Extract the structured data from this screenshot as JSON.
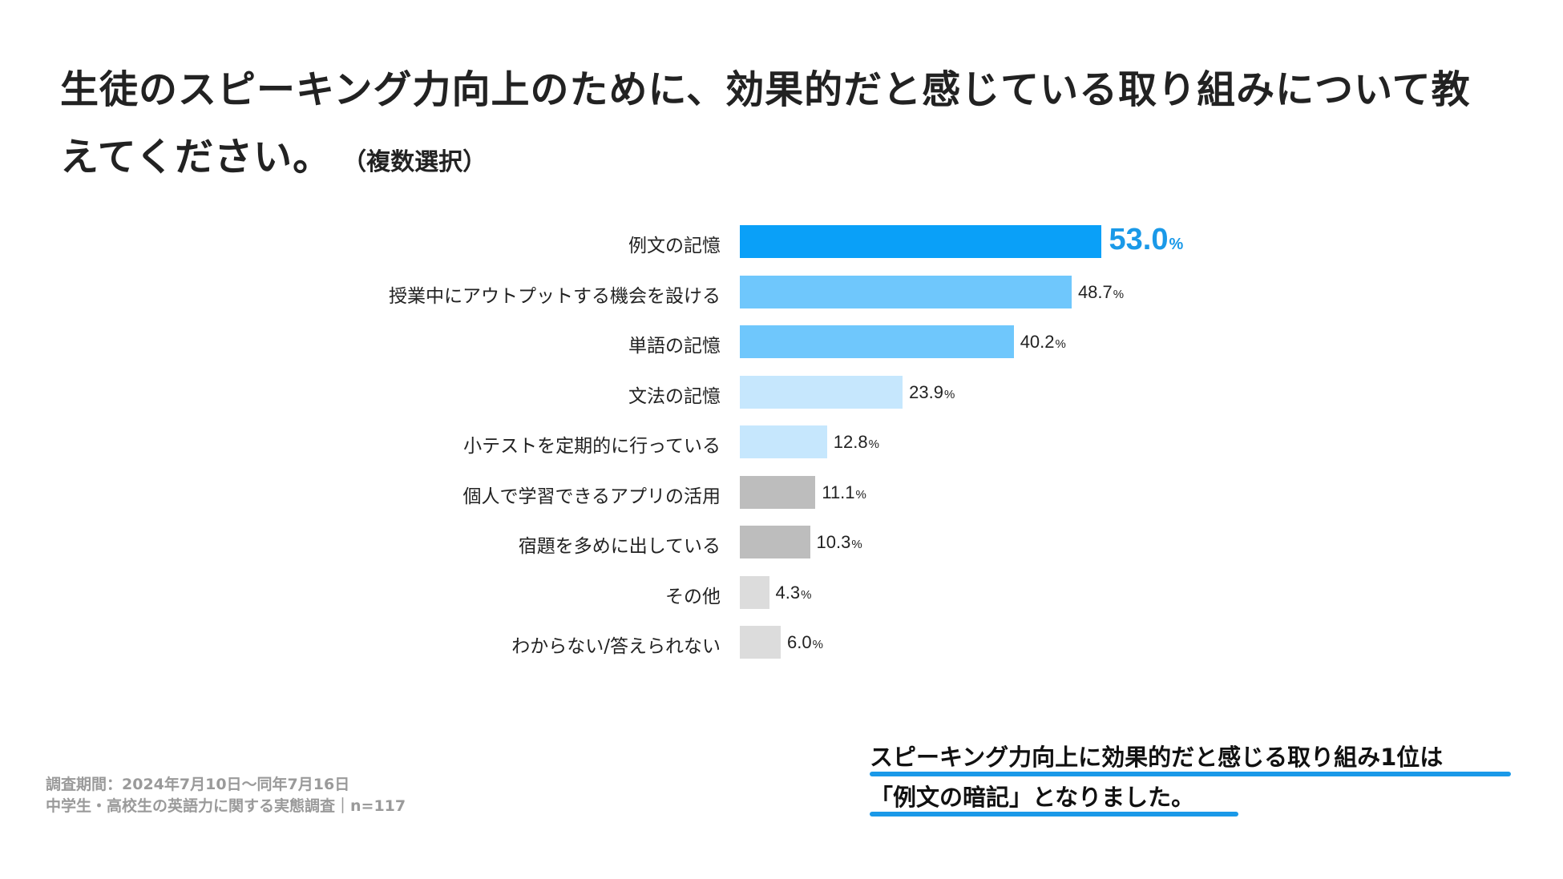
{
  "title": {
    "main": "生徒のスピーキング力向上のために、効果的だと感じている取り組みについて教えてください。",
    "sub": "（複数選択）"
  },
  "chart_data": {
    "type": "bar",
    "orientation": "horizontal",
    "categories": [
      "例文の記憶",
      "授業中にアウトプットする機会を設ける",
      "単語の記憶",
      "文法の記憶",
      "小テストを定期的に行っている",
      "個人で学習できるアプリの活用",
      "宿題を多めに出している",
      "その他",
      "わからない/答えられない"
    ],
    "values": [
      53.0,
      48.7,
      40.2,
      23.9,
      12.8,
      11.1,
      10.3,
      4.3,
      6.0
    ],
    "value_labels": [
      "53.0",
      "48.7",
      "40.2",
      "23.9",
      "12.8",
      "11.1",
      "10.3",
      "4.3",
      "6.0"
    ],
    "unit": "%",
    "colors": [
      "#0aa0f8",
      "#6fc7fc",
      "#6fc7fc",
      "#c6e7fd",
      "#c6e7fd",
      "#bdbdbd",
      "#bdbdbd",
      "#dcdcdc",
      "#dcdcdc"
    ],
    "highlight_color": "#1a99e8",
    "xlim": [
      0,
      100
    ],
    "grid": false,
    "legend": "none"
  },
  "footnote": {
    "line1": "調査期間：2024年7月10日〜同年7月16日",
    "line2": "中学生・高校生の英語力に関する実態調査｜n=117"
  },
  "callout": {
    "line1": "スピーキング力向上に効果的だと感じる取り組み1位は",
    "line2": "「例文の暗記」となりました。"
  }
}
